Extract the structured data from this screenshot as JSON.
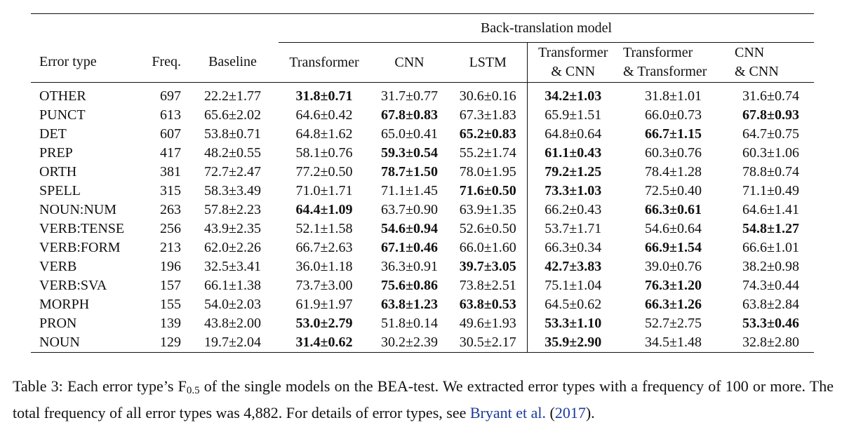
{
  "table": {
    "group_header": "Back-translation model",
    "columns": [
      {
        "line1": "Error type",
        "line2": ""
      },
      {
        "line1": "Freq.",
        "line2": ""
      },
      {
        "line1": "Baseline",
        "line2": ""
      },
      {
        "line1": "Transformer",
        "line2": ""
      },
      {
        "line1": "CNN",
        "line2": ""
      },
      {
        "line1": "LSTM",
        "line2": ""
      },
      {
        "line1": "Transformer",
        "line2": "& CNN"
      },
      {
        "line1": "Transformer",
        "line2": "& Transformer"
      },
      {
        "line1": "CNN",
        "line2": "& CNN"
      }
    ],
    "rows": [
      {
        "type": "OTHER",
        "freq": "697",
        "baseline": "22.2±1.77",
        "vals": [
          "31.8±0.71",
          "31.7±0.77",
          "30.6±0.16",
          "34.2±1.03",
          "31.8±1.01",
          "31.6±0.74"
        ],
        "bold": [
          true,
          false,
          false,
          true,
          false,
          false
        ]
      },
      {
        "type": "PUNCT",
        "freq": "613",
        "baseline": "65.6±2.02",
        "vals": [
          "64.6±0.42",
          "67.8±0.83",
          "67.3±1.83",
          "65.9±1.51",
          "66.0±0.73",
          "67.8±0.93"
        ],
        "bold": [
          false,
          true,
          false,
          false,
          false,
          true
        ]
      },
      {
        "type": "DET",
        "freq": "607",
        "baseline": "53.8±0.71",
        "vals": [
          "64.8±1.62",
          "65.0±0.41",
          "65.2±0.83",
          "64.8±0.64",
          "66.7±1.15",
          "64.7±0.75"
        ],
        "bold": [
          false,
          false,
          true,
          false,
          true,
          false
        ]
      },
      {
        "type": "PREP",
        "freq": "417",
        "baseline": "48.2±0.55",
        "vals": [
          "58.1±0.76",
          "59.3±0.54",
          "55.2±1.74",
          "61.1±0.43",
          "60.3±0.76",
          "60.3±1.06"
        ],
        "bold": [
          false,
          true,
          false,
          true,
          false,
          false
        ]
      },
      {
        "type": "ORTH",
        "freq": "381",
        "baseline": "72.7±2.47",
        "vals": [
          "77.2±0.50",
          "78.7±1.50",
          "78.0±1.95",
          "79.2±1.25",
          "78.4±1.28",
          "78.8±0.74"
        ],
        "bold": [
          false,
          true,
          false,
          true,
          false,
          false
        ]
      },
      {
        "type": "SPELL",
        "freq": "315",
        "baseline": "58.3±3.49",
        "vals": [
          "71.0±1.71",
          "71.1±1.45",
          "71.6±0.50",
          "73.3±1.03",
          "72.5±0.40",
          "71.1±0.49"
        ],
        "bold": [
          false,
          false,
          true,
          true,
          false,
          false
        ]
      },
      {
        "type": "NOUN:NUM",
        "freq": "263",
        "baseline": "57.8±2.23",
        "vals": [
          "64.4±1.09",
          "63.7±0.90",
          "63.9±1.35",
          "66.2±0.43",
          "66.3±0.61",
          "64.6±1.41"
        ],
        "bold": [
          true,
          false,
          false,
          false,
          true,
          false
        ]
      },
      {
        "type": "VERB:TENSE",
        "freq": "256",
        "baseline": "43.9±2.35",
        "vals": [
          "52.1±1.58",
          "54.6±0.94",
          "52.6±0.50",
          "53.7±1.71",
          "54.6±0.64",
          "54.8±1.27"
        ],
        "bold": [
          false,
          true,
          false,
          false,
          false,
          true
        ]
      },
      {
        "type": "VERB:FORM",
        "freq": "213",
        "baseline": "62.0±2.26",
        "vals": [
          "66.7±2.63",
          "67.1±0.46",
          "66.0±1.60",
          "66.3±0.34",
          "66.9±1.54",
          "66.6±1.01"
        ],
        "bold": [
          false,
          true,
          false,
          false,
          true,
          false
        ]
      },
      {
        "type": "VERB",
        "freq": "196",
        "baseline": "32.5±3.41",
        "vals": [
          "36.0±1.18",
          "36.3±0.91",
          "39.7±3.05",
          "42.7±3.83",
          "39.0±0.76",
          "38.2±0.98"
        ],
        "bold": [
          false,
          false,
          true,
          true,
          false,
          false
        ]
      },
      {
        "type": "VERB:SVA",
        "freq": "157",
        "baseline": "66.1±1.38",
        "vals": [
          "73.7±3.00",
          "75.6±0.86",
          "73.8±2.51",
          "75.1±1.04",
          "76.3±1.20",
          "74.3±0.44"
        ],
        "bold": [
          false,
          true,
          false,
          false,
          true,
          false
        ]
      },
      {
        "type": "MORPH",
        "freq": "155",
        "baseline": "54.0±2.03",
        "vals": [
          "61.9±1.97",
          "63.8±1.23",
          "63.8±0.53",
          "64.5±0.62",
          "66.3±1.26",
          "63.8±2.84"
        ],
        "bold": [
          false,
          true,
          true,
          false,
          true,
          false
        ]
      },
      {
        "type": "PRON",
        "freq": "139",
        "baseline": "43.8±2.00",
        "vals": [
          "53.0±2.79",
          "51.8±0.14",
          "49.6±1.93",
          "53.3±1.10",
          "52.7±2.75",
          "53.3±0.46"
        ],
        "bold": [
          true,
          false,
          false,
          true,
          false,
          true
        ]
      },
      {
        "type": "NOUN",
        "freq": "129",
        "baseline": "19.7±2.04",
        "vals": [
          "31.4±0.62",
          "30.2±2.39",
          "30.5±2.17",
          "35.9±2.90",
          "34.5±1.48",
          "32.8±2.80"
        ],
        "bold": [
          true,
          false,
          false,
          true,
          false,
          false
        ]
      }
    ]
  },
  "caption": {
    "text_before": "Table 3: Each error type’s F",
    "subscript": "0.5",
    "text_middle": " of the single models on the BEA-test. We extracted error types with a frequency of 100 or more. The total frequency of all error types was 4,882. For details of error types, see ",
    "ref_name": "Bryant et al.",
    "ref_open": " (",
    "ref_year": "2017",
    "ref_close": ")."
  }
}
